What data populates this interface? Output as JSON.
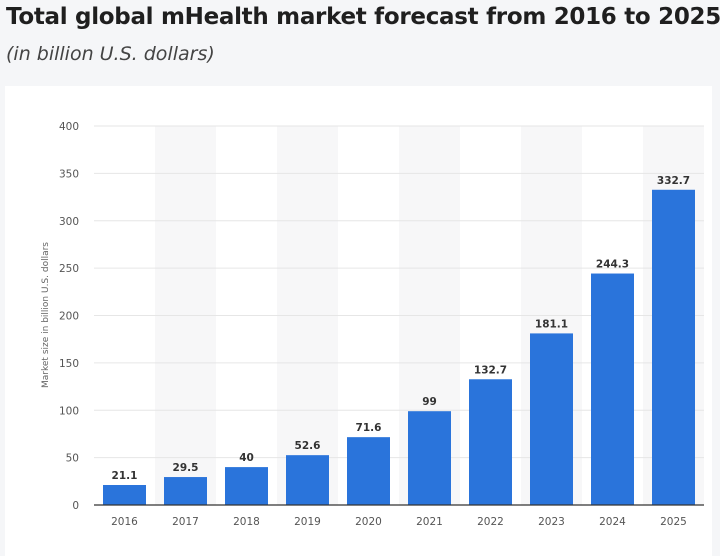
{
  "header": {
    "title": "Total global mHealth market forecast from 2016 to 2025",
    "subtitle": "(in billion U.S. dollars)"
  },
  "chart_data": {
    "type": "bar",
    "title": "Total global mHealth market forecast from 2016 to 2025",
    "subtitle": "(in billion U.S. dollars)",
    "xlabel": "",
    "ylabel": "Market size in billion U.S. dollars",
    "categories": [
      "2016",
      "2017",
      "2018",
      "2019",
      "2020",
      "2021",
      "2022",
      "2023",
      "2024",
      "2025"
    ],
    "values": [
      21.1,
      29.5,
      40,
      52.6,
      71.6,
      99,
      132.7,
      181.1,
      244.3,
      332.7
    ],
    "data_labels": [
      "21.1",
      "29.5",
      "40",
      "52.6",
      "71.6",
      "99",
      "132.7",
      "181.1",
      "244.3",
      "332.7"
    ],
    "ylim": [
      0,
      400
    ],
    "yticks": [
      0,
      50,
      100,
      150,
      200,
      250,
      300,
      350,
      400
    ],
    "grid": true,
    "bar_color": "#2a74db"
  }
}
